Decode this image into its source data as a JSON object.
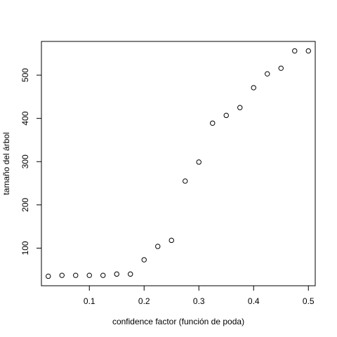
{
  "chart_data": {
    "type": "scatter",
    "title": "",
    "xlabel": "confidence factor (función de poda)",
    "ylabel": "tamaño del árbol",
    "xlim": [
      0.0125,
      0.5125
    ],
    "ylim": [
      13,
      578
    ],
    "xticks": [
      0.1,
      0.2,
      0.3,
      0.4,
      0.5
    ],
    "xtick_labels": [
      "0.1",
      "0.2",
      "0.3",
      "0.4",
      "0.5"
    ],
    "yticks": [
      100,
      200,
      300,
      400,
      500
    ],
    "ytick_labels": [
      "100",
      "200",
      "300",
      "400",
      "500"
    ],
    "grid": false,
    "legend": "none",
    "marker": "open-circle",
    "series": [
      {
        "x": [
          0.025,
          0.05,
          0.075,
          0.1,
          0.125,
          0.15,
          0.175,
          0.2,
          0.225,
          0.25,
          0.275,
          0.3,
          0.325,
          0.35,
          0.375,
          0.4,
          0.425,
          0.45,
          0.475,
          0.5
        ],
        "y": [
          35,
          37,
          37,
          37,
          37,
          40,
          40,
          73,
          104,
          118,
          255,
          299,
          389,
          407,
          425,
          471,
          503,
          516,
          556,
          556
        ]
      }
    ]
  }
}
